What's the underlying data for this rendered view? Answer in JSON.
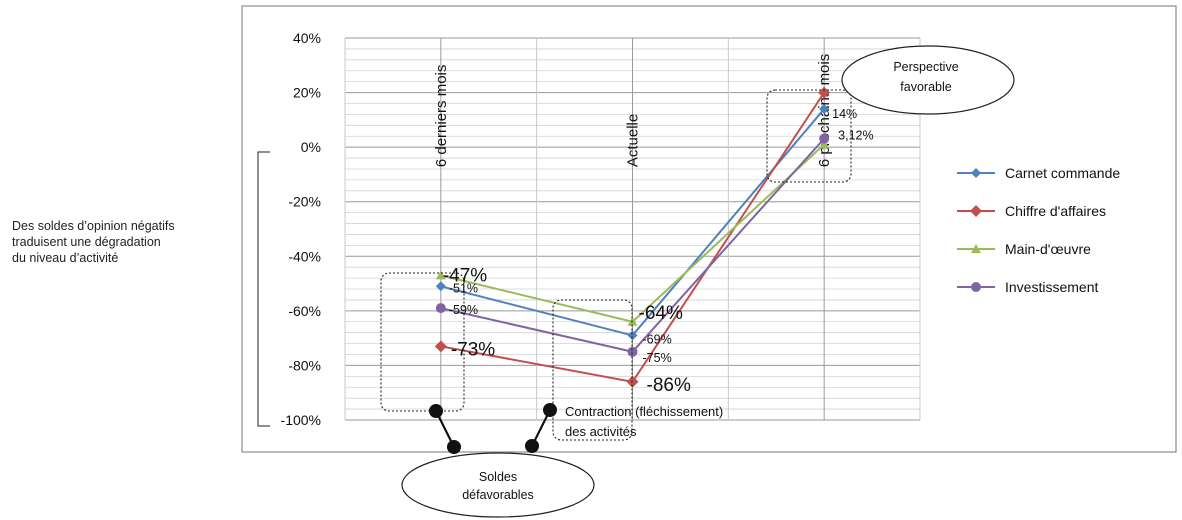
{
  "chart_data": {
    "type": "line",
    "categories": [
      "6 derniers mois",
      "Actuelle",
      "6 prochains mois"
    ],
    "ylim": [
      -100,
      40
    ],
    "yticks": [
      "40%",
      "20%",
      "0%",
      "-20%",
      "-40%",
      "-60%",
      "-80%",
      "-100%"
    ],
    "ytick_values": [
      40,
      20,
      0,
      -20,
      -40,
      -60,
      -80,
      -100
    ],
    "grid": true,
    "legend_position": "right",
    "series": [
      {
        "name": "Carnet commande",
        "values": [
          -51,
          -69,
          14
        ],
        "color": "#4f81bd",
        "marker": "diamond",
        "labels": [
          "-51%",
          "-69%",
          "14%"
        ]
      },
      {
        "name": "Chiffre d'affaires",
        "values": [
          -73,
          -86,
          20
        ],
        "color": "#c0504d",
        "marker": "square",
        "labels": [
          "-73%",
          "-86%",
          ""
        ]
      },
      {
        "name": "Main-d'œuvre",
        "values": [
          -47,
          -64,
          1
        ],
        "color": "#9bbb59",
        "marker": "triangle",
        "labels": [
          "-47%",
          "-64%",
          ""
        ]
      },
      {
        "name": "Investissement",
        "values": [
          -59,
          -75,
          3.12
        ],
        "color": "#8064a2",
        "marker": "x",
        "labels": [
          "-59%",
          "-75%",
          "3,12%"
        ]
      }
    ]
  },
  "annotations": {
    "side_note": [
      "Des soldes d’opinion négatifs",
      "traduisent une dégradation",
      "du niveau d’activité"
    ],
    "bubble_favorable": [
      "Perspective",
      "favorable"
    ],
    "bubble_defavorable": [
      "Soldes",
      "défavorables"
    ],
    "contraction": [
      "Contraction (fléchissement)",
      "des activités"
    ]
  }
}
